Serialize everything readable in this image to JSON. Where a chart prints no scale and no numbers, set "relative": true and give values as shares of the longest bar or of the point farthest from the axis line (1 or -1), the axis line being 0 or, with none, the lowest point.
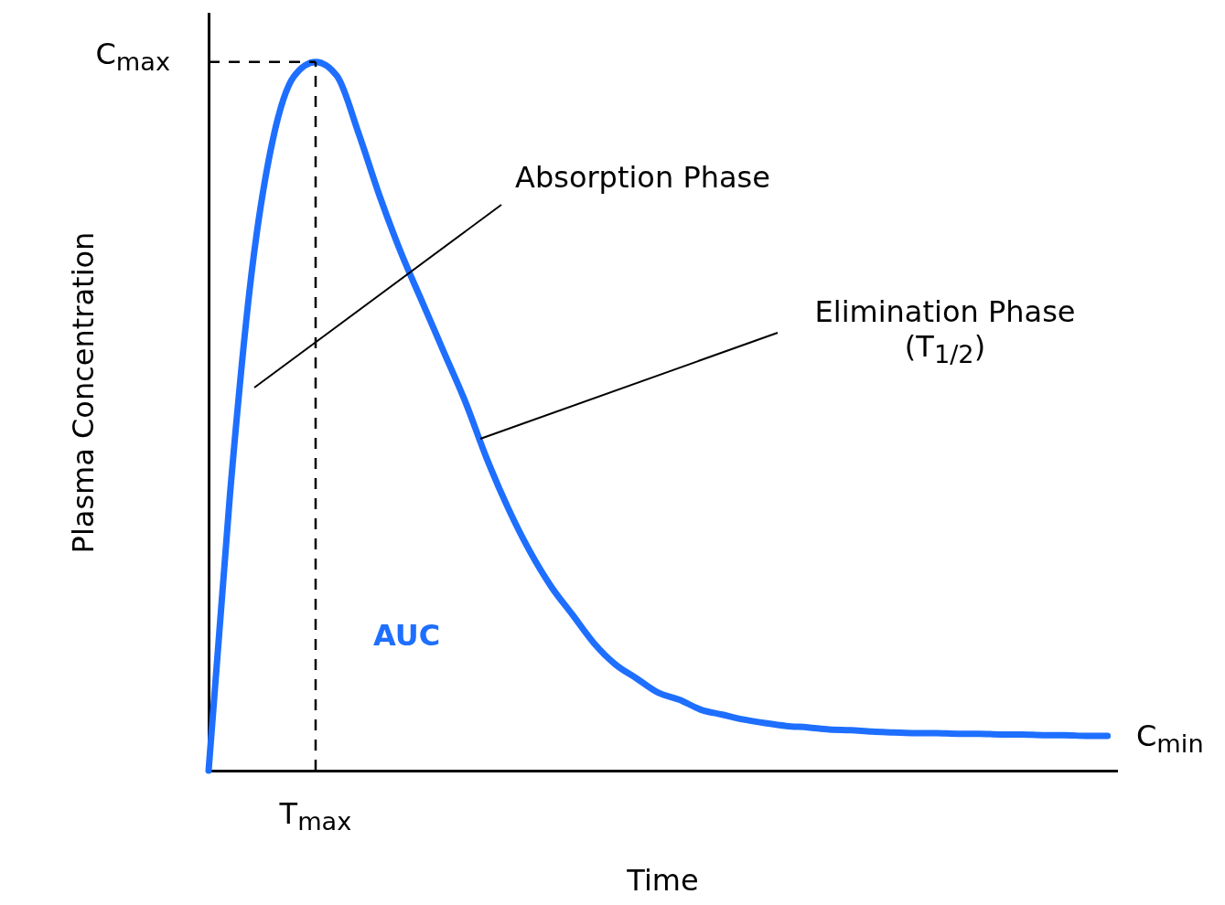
{
  "chart_data": {
    "type": "line",
    "relative": true,
    "xlabel": "Time",
    "ylabel": "Plasma Concentration",
    "tick_labels": false,
    "categories": [
      null,
      null,
      null,
      null,
      null,
      null,
      null,
      null,
      null,
      null,
      null,
      null,
      null,
      null,
      null,
      null,
      null,
      null,
      null,
      null,
      null,
      null,
      null,
      null,
      null,
      null,
      null,
      null,
      null,
      null,
      null,
      null,
      null,
      null,
      null,
      null,
      null,
      null,
      null,
      null,
      null,
      null,
      null
    ],
    "series": [
      {
        "color": "#1e6fff",
        "values": [
          0,
          0.39,
          0.7,
          0.89,
          0.98,
          1,
          0.98,
          0.9,
          0.81,
          0.73,
          0.66,
          0.59,
          0.52,
          0.44,
          0.37,
          0.31,
          0.26,
          0.22,
          0.18,
          0.15,
          0.13,
          0.11,
          0.1,
          0.086,
          0.079,
          0.072,
          0.067,
          0.063,
          0.061,
          0.058,
          0.057,
          0.055,
          0.054,
          0.053,
          0.053,
          0.052,
          0.052,
          0.051,
          0.051,
          0.05,
          0.05,
          0.049,
          0.049
        ]
      }
    ],
    "ref_lines": [
      {
        "axis": "y",
        "value": 1,
        "label": "C$_{max}$",
        "line_style": "dashed",
        "color": "#000000"
      }
    ],
    "annotations": [
      "Absorption Phase",
      "Elimination Phase (T$_{1/2}$)",
      "AUC",
      "C$_{min}$",
      "T$_{max}$"
    ]
  }
}
